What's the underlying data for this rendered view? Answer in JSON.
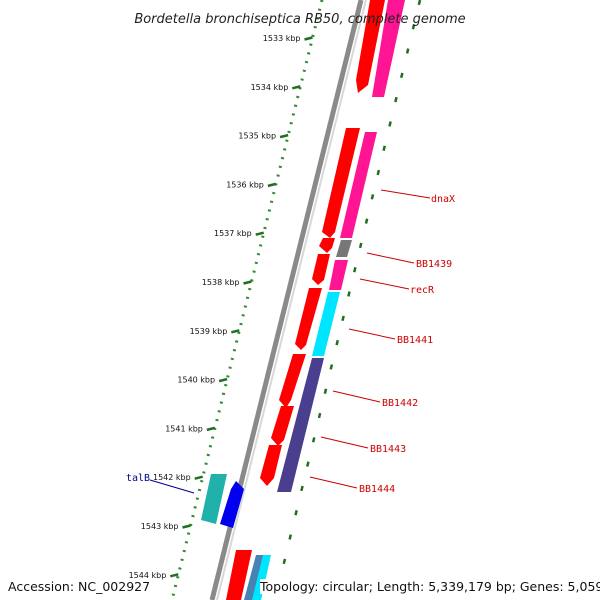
{
  "title": "Bordetella bronchiseptica RB50, complete genome",
  "accession_text": "Accession: NC_002927",
  "topology_text": "Topology: circular; Length: 5,339,179 bp; Genes: 5,059",
  "ticks": [
    {
      "label": "1533 kbp"
    },
    {
      "label": "1534 kbp"
    },
    {
      "label": "1535 kbp"
    },
    {
      "label": "1536 kbp"
    },
    {
      "label": "1537 kbp"
    },
    {
      "label": "1538 kbp"
    },
    {
      "label": "1539 kbp"
    },
    {
      "label": "1540 kbp"
    },
    {
      "label": "1541 kbp"
    },
    {
      "label": "1542 kbp"
    },
    {
      "label": "1543 kbp"
    },
    {
      "label": "1544 kbp"
    }
  ],
  "gene_labels": [
    {
      "name": "dnaX",
      "color": "#cc0000"
    },
    {
      "name": "BB1439",
      "color": "#cc0000"
    },
    {
      "name": "recR",
      "color": "#cc0000"
    },
    {
      "name": "BB1441",
      "color": "#cc0000"
    },
    {
      "name": "BB1442",
      "color": "#cc0000"
    },
    {
      "name": "BB1443",
      "color": "#cc0000"
    },
    {
      "name": "BB1444",
      "color": "#cc0000"
    },
    {
      "name": "talB",
      "color": "#00008b"
    }
  ],
  "colors": {
    "backbone": "#888888",
    "dotted_ring": "#2e8b2e",
    "tick_mark": "#1f6f1f",
    "cds": "#ff0000",
    "magenta": "#ff1493",
    "gray": "#777777",
    "cyan": "#00e5ff",
    "slate": "#4a3f8f",
    "teal": "#20b2aa",
    "blue": "#0000ee",
    "steelblue": "#4682b4"
  }
}
